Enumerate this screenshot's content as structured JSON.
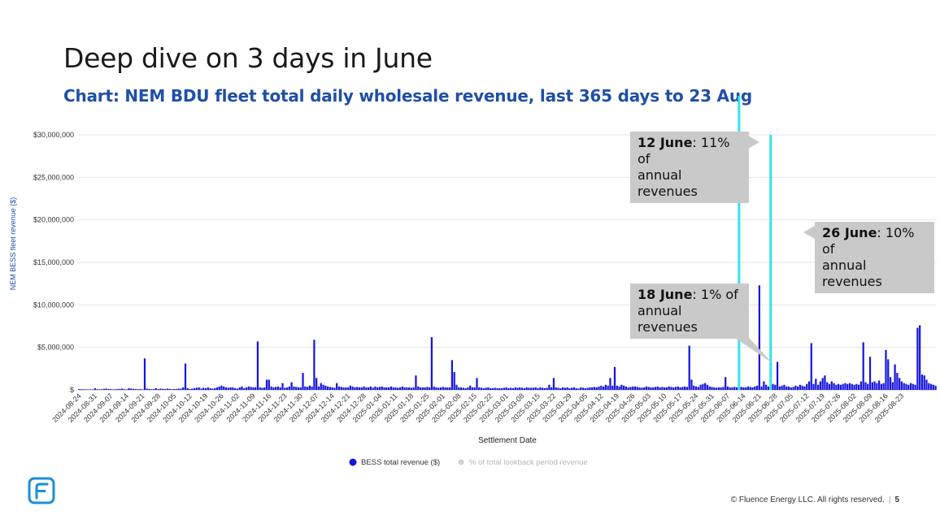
{
  "slide": {
    "title": "Deep dive on 3 days in June",
    "subtitle": "Chart: NEM BDU fleet total daily wholesale revenue, last 365 days to 23 Aug",
    "footer_text": "© Fluence Energy LLC. All rights reserved.",
    "footer_sep": "|",
    "page_number": "5"
  },
  "callouts": [
    {
      "date": "12 June",
      "text_1": ": 11% of",
      "text_2": "annual revenues"
    },
    {
      "date": "26 June",
      "text_1": ": 10% of",
      "text_2": "annual revenues"
    },
    {
      "date": "18 June",
      "text_1": ": 1% of",
      "text_2": "annual revenues"
    }
  ],
  "colors": {
    "bar": "#1515e0",
    "highlight": "#33e3ef",
    "title_blue": "#1f4fa8",
    "callout_bg": "#c9c9c9",
    "legend_secondary": "#d0d0d0",
    "logo": "#1a8fd6"
  },
  "icons": {
    "logo": "fluence-logo-icon"
  },
  "chart_data": {
    "type": "bar",
    "title": "",
    "xlabel": "Settlement Date",
    "ylabel": "NEM BESS fleet revenue ($)",
    "ylim": [
      0,
      30000000
    ],
    "yticks": [
      0,
      5000000,
      10000000,
      15000000,
      20000000,
      25000000,
      30000000
    ],
    "ytick_labels": [
      "$",
      "$5,000,000",
      "$10,000,000",
      "$15,000,000",
      "$20,000,000",
      "$25,000,000",
      "$30,000,000"
    ],
    "x_tick_labels": [
      "2024-08-24",
      "2024-08-31",
      "2024-09-07",
      "2024-09-14",
      "2024-09-21",
      "2024-09-28",
      "2024-10-05",
      "2024-10-12",
      "2024-10-19",
      "2024-10-26",
      "2024-11-02",
      "2024-11-09",
      "2024-11-16",
      "2024-11-23",
      "2024-11-30",
      "2024-12-07",
      "2024-12-14",
      "2024-12-21",
      "2024-12-28",
      "2025-01-04",
      "2025-01-11",
      "2025-01-18",
      "2025-01-25",
      "2025-02-01",
      "2025-02-08",
      "2025-02-15",
      "2025-02-22",
      "2025-03-01",
      "2025-03-08",
      "2025-03-15",
      "2025-03-22",
      "2025-03-29",
      "2025-04-05",
      "2025-04-12",
      "2025-04-19",
      "2025-04-26",
      "2025-05-03",
      "2025-05-10",
      "2025-05-17",
      "2025-05-24",
      "2025-05-31",
      "2025-06-07",
      "2025-06-14",
      "2025-06-21",
      "2025-06-28",
      "2025-07-05",
      "2025-07-12",
      "2025-07-19",
      "2025-07-26",
      "2025-08-02",
      "2025-08-09",
      "2025-08-16",
      "2025-08-23"
    ],
    "legend": [
      "BESS total revenue ($)",
      "% of total lookback period revenue"
    ],
    "legend_position": "bottom",
    "grid": true,
    "series": [
      {
        "name": "BESS total revenue ($)",
        "start_date": "2024-08-24",
        "values": [
          100000,
          80000,
          70000,
          60000,
          60000,
          70000,
          50000,
          200000,
          80000,
          60000,
          80000,
          120000,
          150000,
          100000,
          90000,
          60000,
          80000,
          100000,
          120000,
          150000,
          80000,
          60000,
          200000,
          150000,
          120000,
          100000,
          80000,
          100000,
          60000,
          3700000,
          150000,
          120000,
          80000,
          100000,
          200000,
          100000,
          150000,
          120000,
          100000,
          150000,
          120000,
          80000,
          100000,
          100000,
          150000,
          150000,
          300000,
          3100000,
          200000,
          100000,
          150000,
          200000,
          250000,
          300000,
          150000,
          250000,
          200000,
          300000,
          200000,
          150000,
          200000,
          300000,
          400000,
          500000,
          400000,
          300000,
          250000,
          300000,
          300000,
          200000,
          150000,
          300000,
          400000,
          200000,
          300000,
          400000,
          350000,
          300000,
          300000,
          5700000,
          300000,
          250000,
          300000,
          1200000,
          1200000,
          400000,
          300000,
          350000,
          400000,
          300000,
          800000,
          250000,
          300000,
          400000,
          900000,
          400000,
          350000,
          300000,
          300000,
          2000000,
          400000,
          350000,
          500000,
          400000,
          5900000,
          1400000,
          400000,
          800000,
          600000,
          500000,
          400000,
          350000,
          300000,
          250000,
          800000,
          400000,
          350000,
          300000,
          300000,
          300000,
          500000,
          400000,
          300000,
          350000,
          300000,
          300000,
          400000,
          300000,
          300000,
          400000,
          250000,
          400000,
          300000,
          350000,
          400000,
          300000,
          300000,
          300000,
          400000,
          300000,
          300000,
          250000,
          300000,
          400000,
          300000,
          300000,
          300000,
          250000,
          300000,
          1700000,
          400000,
          300000,
          300000,
          300000,
          350000,
          300000,
          6200000,
          400000,
          300000,
          250000,
          300000,
          350000,
          300000,
          300000,
          300000,
          3500000,
          2100000,
          600000,
          300000,
          300000,
          250000,
          200000,
          300000,
          500000,
          300000,
          300000,
          1400000,
          300000,
          250000,
          200000,
          250000,
          300000,
          200000,
          200000,
          250000,
          200000,
          200000,
          200000,
          250000,
          300000,
          200000,
          250000,
          200000,
          300000,
          250000,
          300000,
          250000,
          200000,
          300000,
          250000,
          250000,
          250000,
          300000,
          200000,
          300000,
          250000,
          200000,
          250000,
          600000,
          300000,
          1400000,
          300000,
          250000,
          200000,
          300000,
          250000,
          300000,
          200000,
          250000,
          300000,
          200000,
          150000,
          300000,
          250000,
          200000,
          250000,
          300000,
          300000,
          350000,
          300000,
          400000,
          500000,
          400000,
          600000,
          500000,
          1400000,
          500000,
          2700000,
          500000,
          400000,
          600000,
          500000,
          400000,
          300000,
          350000,
          400000,
          400000,
          350000,
          300000,
          250000,
          300000,
          400000,
          350000,
          300000,
          300000,
          350000,
          400000,
          300000,
          350000,
          300000,
          300000,
          400000,
          350000,
          300000,
          350000,
          400000,
          300000,
          350000,
          400000,
          350000,
          5200000,
          1200000,
          500000,
          400000,
          350000,
          600000,
          700000,
          800000,
          600000,
          400000,
          350000,
          300000,
          250000,
          300000,
          300000,
          350000,
          1500000,
          400000,
          300000,
          300000,
          350000,
          300000,
          400000,
          350000,
          300000,
          300000,
          400000,
          350000,
          300000,
          400000,
          500000,
          12300000,
          400000,
          1000000,
          600000,
          400000,
          500000,
          700000,
          600000,
          3300000,
          400000,
          500000,
          600000,
          400000,
          400000,
          300000,
          350000,
          500000,
          400000,
          600000,
          500000,
          400000,
          700000,
          1000000,
          5500000,
          700000,
          1300000,
          600000,
          1000000,
          1400000,
          1700000,
          900000,
          700000,
          1000000,
          800000,
          600000,
          700000,
          600000,
          700000,
          800000,
          700000,
          800000,
          700000,
          600000,
          700000,
          600000,
          1000000,
          5600000,
          900000,
          700000,
          3900000,
          900000,
          1000000,
          800000,
          1100000,
          700000,
          800000,
          4700000,
          3600000,
          1500000,
          900000,
          3000000,
          2000000,
          1400000,
          1000000,
          800000,
          700000,
          600000,
          800000,
          700000,
          600000,
          7300000,
          7600000,
          1800000,
          1700000,
          1200000,
          800000,
          700000,
          600000,
          500000
        ],
        "highlight_lines": [
          {
            "date": "2025-06-12",
            "value": 34600000
          },
          {
            "date": "2025-06-26",
            "value": 30000000
          }
        ]
      },
      {
        "name": "% of total lookback period revenue",
        "values": []
      }
    ]
  }
}
